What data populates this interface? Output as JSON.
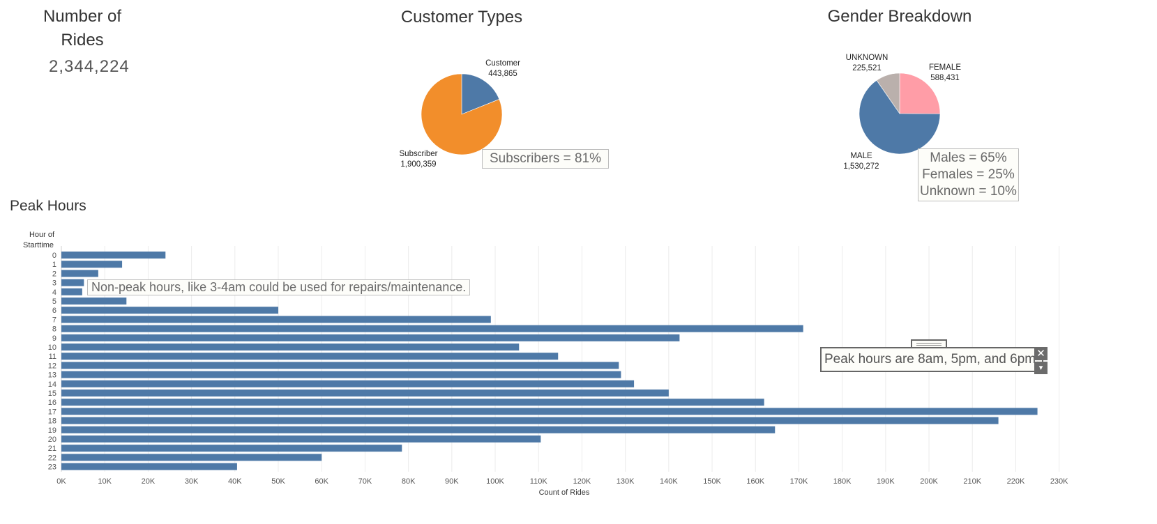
{
  "kpi": {
    "title_line1": "Number of",
    "title_line2": "Rides",
    "value": "2,344,224"
  },
  "customer_types": {
    "title": "Customer Types",
    "annotation": "Subscribers = 81%",
    "labels": {
      "customer_name": "Customer",
      "customer_value": "443,865",
      "subscriber_name": "Subscriber",
      "subscriber_value": "1,900,359"
    },
    "colors": {
      "Customer": "#4e79a7",
      "Subscriber": "#f28e2b"
    }
  },
  "gender": {
    "title": "Gender Breakdown",
    "annotation": {
      "line1": "Males = 65%",
      "line2": "Females = 25%",
      "line3": "Unknown = 10%"
    },
    "labels": {
      "unknown_name": "UNKNOWN",
      "unknown_value": "225,521",
      "female_name": "FEMALE",
      "female_value": "588,431",
      "male_name": "MALE",
      "male_value": "1,530,272"
    },
    "colors": {
      "FEMALE": "#ff9da7",
      "MALE": "#4e79a7",
      "UNKNOWN": "#bab0ac"
    }
  },
  "peak": {
    "title": "Peak Hours",
    "annotation_nonpeak": "Non-peak hours, like 3-4am could be used for repairs/maintenance.",
    "annotation_peak": "Peak hours are 8am, 5pm, and 6pm.",
    "close_glyph": "✕",
    "dropdown_glyph": "▾"
  },
  "chart_data": [
    {
      "type": "pie",
      "title": "Customer Types",
      "categories": [
        "Customer",
        "Subscriber"
      ],
      "values": [
        443865,
        1900359
      ]
    },
    {
      "type": "pie",
      "title": "Gender Breakdown",
      "categories": [
        "FEMALE",
        "MALE",
        "UNKNOWN"
      ],
      "values": [
        588431,
        1530272,
        225521
      ]
    },
    {
      "type": "bar",
      "orientation": "horizontal",
      "title": "Peak Hours",
      "ylabel_line1": "Hour of",
      "ylabel_line2": "Starttime",
      "xlabel": "Count of Rides",
      "categories": [
        "0",
        "1",
        "2",
        "3",
        "4",
        "5",
        "6",
        "7",
        "8",
        "9",
        "10",
        "11",
        "12",
        "13",
        "14",
        "15",
        "16",
        "17",
        "18",
        "19",
        "20",
        "21",
        "22",
        "23"
      ],
      "values": [
        24000,
        14000,
        8500,
        5200,
        4800,
        15000,
        50000,
        99000,
        171000,
        142500,
        105500,
        114500,
        128500,
        129000,
        132000,
        140000,
        162000,
        225000,
        216000,
        164500,
        110500,
        78500,
        60000,
        40500
      ],
      "xlim": [
        0,
        230000
      ],
      "xticks": [
        "0K",
        "10K",
        "20K",
        "30K",
        "40K",
        "50K",
        "60K",
        "70K",
        "80K",
        "90K",
        "100K",
        "110K",
        "120K",
        "130K",
        "140K",
        "150K",
        "160K",
        "170K",
        "180K",
        "190K",
        "200K",
        "210K",
        "220K",
        "230K"
      ],
      "grid": true,
      "color": "#4e79a7"
    }
  ]
}
